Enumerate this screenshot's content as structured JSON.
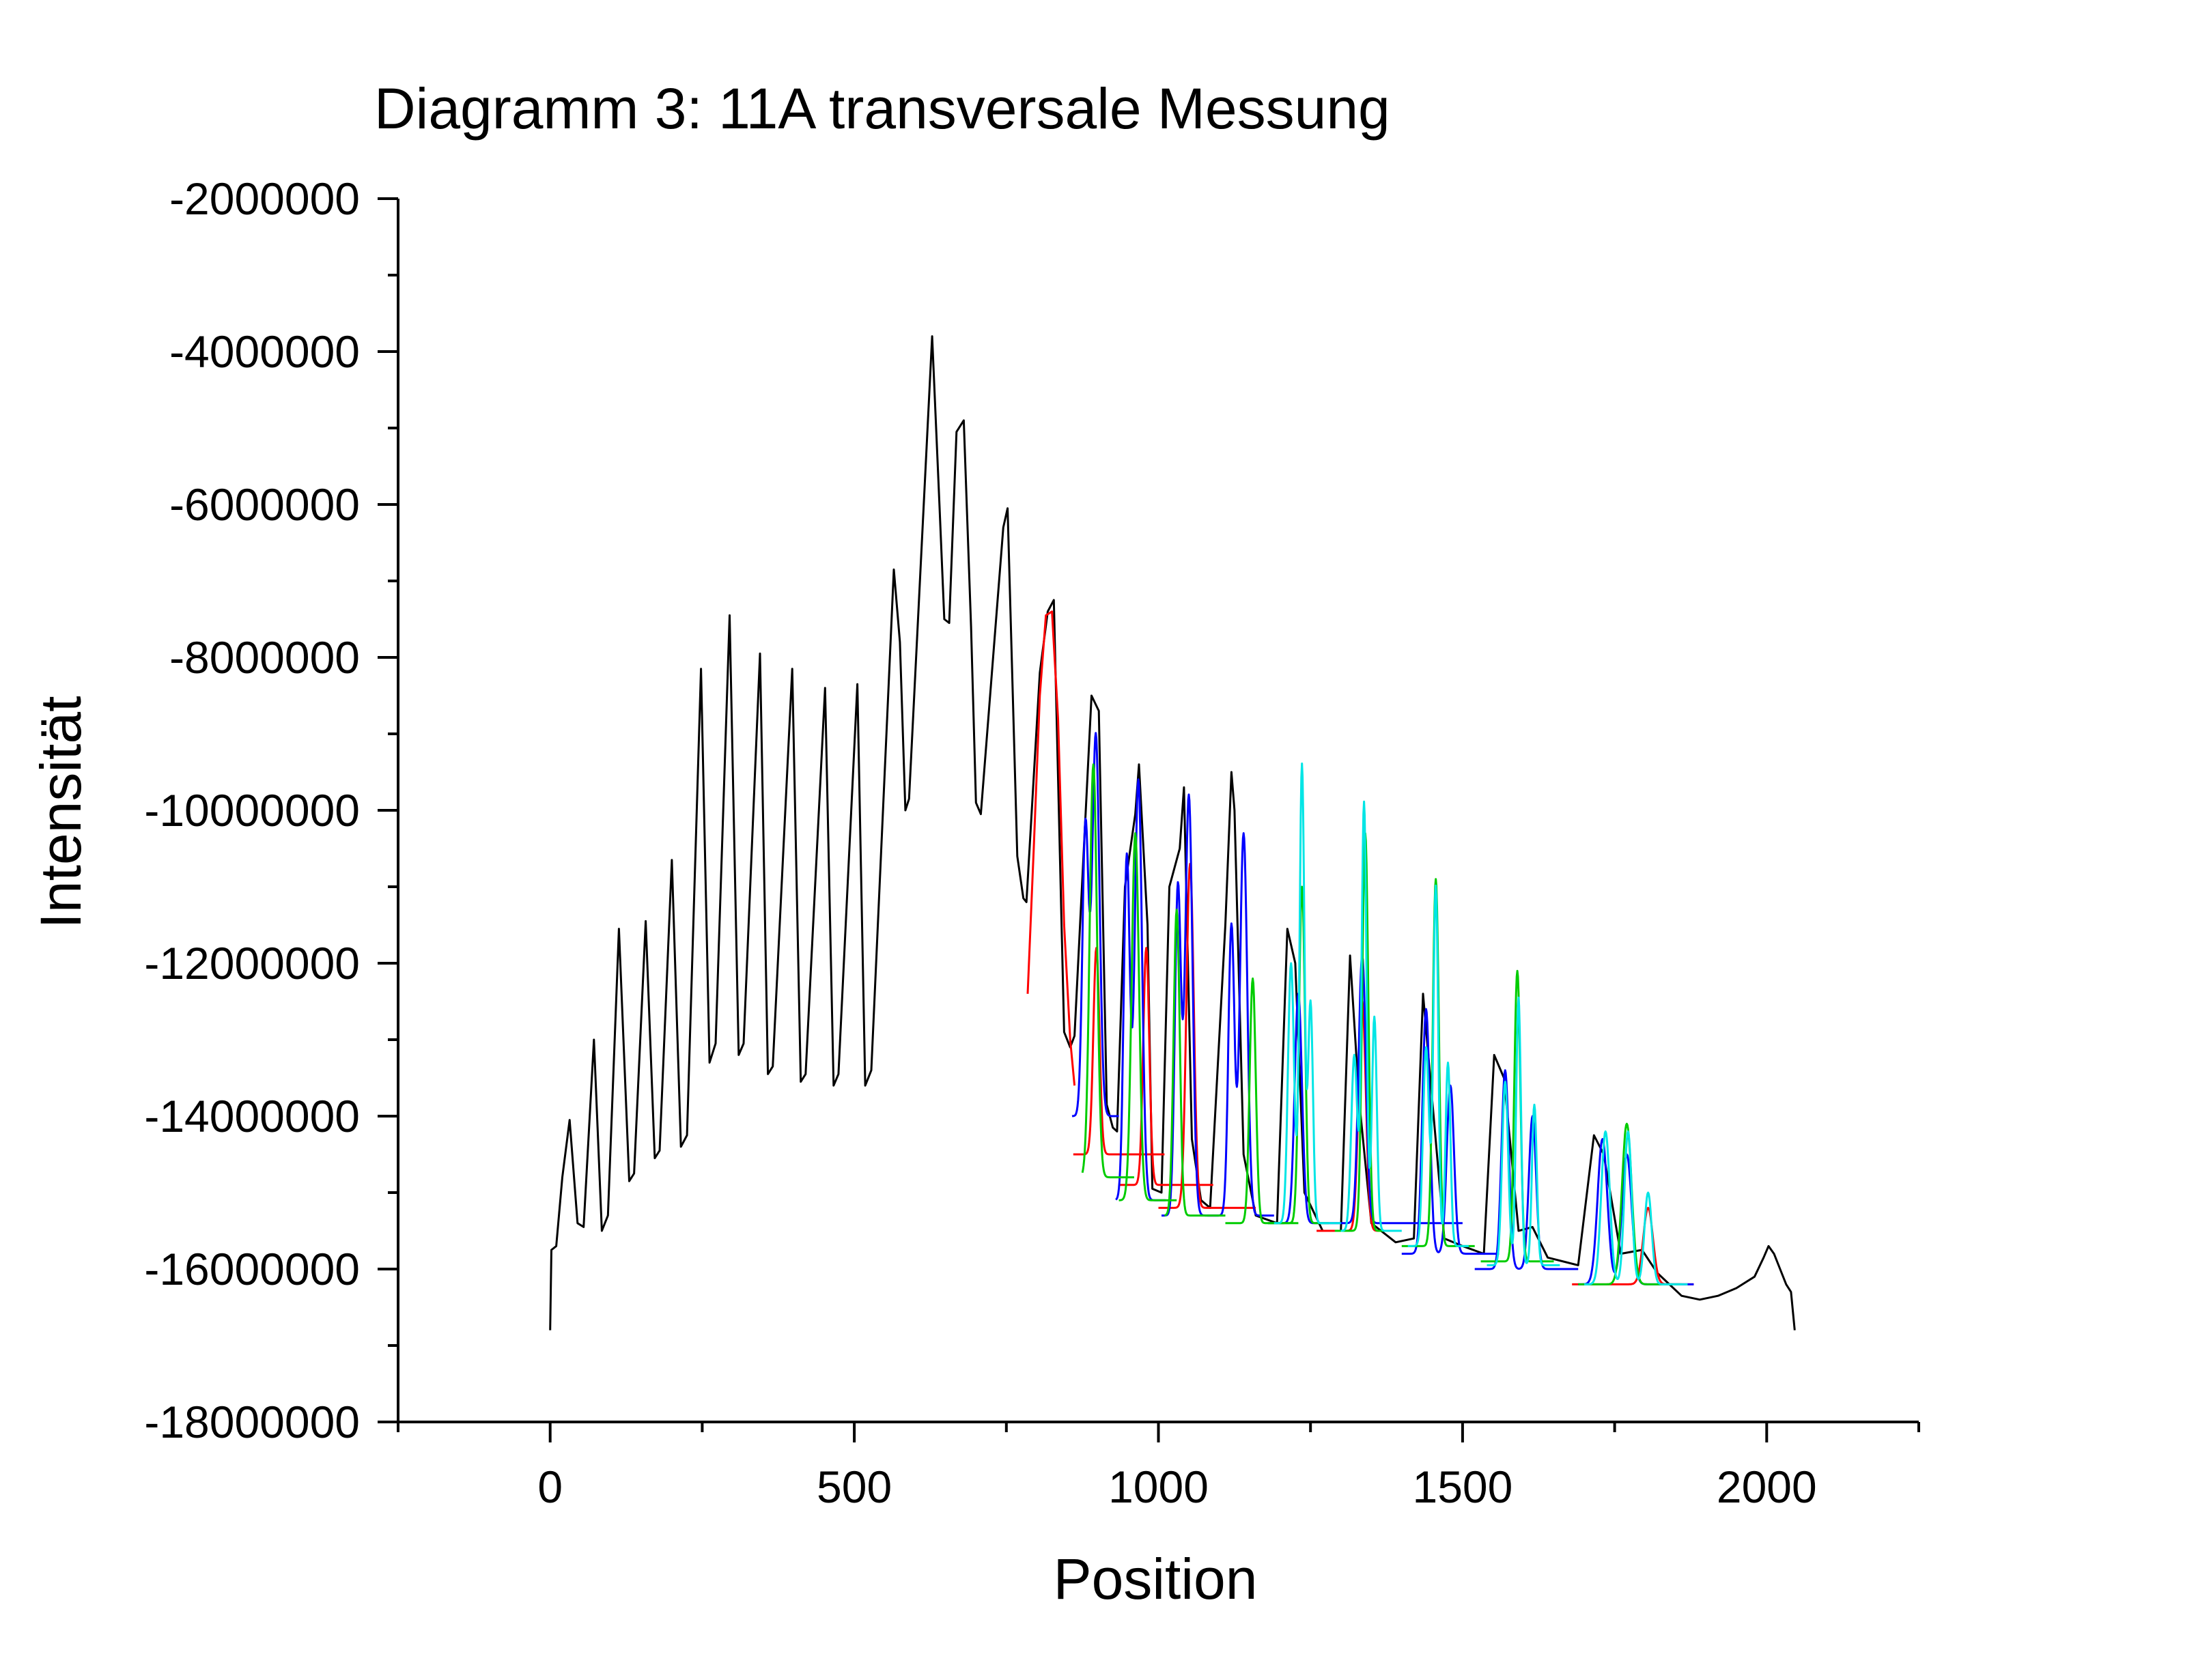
{
  "chart_data": {
    "type": "line",
    "title": "Diagramm 3: 11A transversale Messung",
    "xlabel": "Position",
    "ylabel": "Intensität",
    "xlim": [
      -250,
      2250
    ],
    "ylim": [
      -18000000,
      -2000000
    ],
    "x_ticks": [
      0,
      500,
      1000,
      1500,
      2000
    ],
    "x_tick_labels": [
      "0",
      "500",
      "1000",
      "1500",
      "2000"
    ],
    "y_ticks": [
      -2000000,
      -4000000,
      -6000000,
      -8000000,
      -10000000,
      -12000000,
      -14000000,
      -16000000,
      -18000000
    ],
    "y_tick_labels": [
      "-2000000",
      "-4000000",
      "-6000000",
      "-8000000",
      "-10000000",
      "-12000000",
      "-14000000",
      "-16000000",
      "-18000000"
    ],
    "grid": false,
    "legend": "none",
    "series": [
      {
        "role": "measurement",
        "color": "#000000",
        "points": [
          [
            0,
            -16800000
          ],
          [
            2,
            -15750000
          ],
          [
            10,
            -15700000
          ],
          [
            20,
            -14800000
          ],
          [
            32,
            -14050000
          ],
          [
            45,
            -15400000
          ],
          [
            55,
            -15450000
          ],
          [
            72,
            -13000000
          ],
          [
            85,
            -15500000
          ],
          [
            95,
            -15300000
          ],
          [
            113,
            -11550000
          ],
          [
            130,
            -14850000
          ],
          [
            138,
            -14750000
          ],
          [
            157,
            -11450000
          ],
          [
            172,
            -14550000
          ],
          [
            180,
            -14450000
          ],
          [
            200,
            -10650000
          ],
          [
            215,
            -14400000
          ],
          [
            225,
            -14250000
          ],
          [
            248,
            -8150000
          ],
          [
            262,
            -13300000
          ],
          [
            272,
            -13050000
          ],
          [
            295,
            -7450000
          ],
          [
            310,
            -13200000
          ],
          [
            318,
            -13050000
          ],
          [
            345,
            -7950000
          ],
          [
            358,
            -13450000
          ],
          [
            366,
            -13350000
          ],
          [
            398,
            -8150000
          ],
          [
            412,
            -13550000
          ],
          [
            420,
            -13450000
          ],
          [
            452,
            -8400000
          ],
          [
            466,
            -13600000
          ],
          [
            474,
            -13450000
          ],
          [
            505,
            -8350000
          ],
          [
            518,
            -13600000
          ],
          [
            528,
            -13400000
          ],
          [
            565,
            -6850000
          ],
          [
            575,
            -7800000
          ],
          [
            584,
            -10000000
          ],
          [
            590,
            -9850000
          ],
          [
            628,
            -3800000
          ],
          [
            640,
            -6000000
          ],
          [
            648,
            -7500000
          ],
          [
            656,
            -7550000
          ],
          [
            668,
            -5050000
          ],
          [
            680,
            -4900000
          ],
          [
            692,
            -7600000
          ],
          [
            700,
            -9900000
          ],
          [
            708,
            -10050000
          ],
          [
            745,
            -6300000
          ],
          [
            752,
            -6050000
          ],
          [
            768,
            -10600000
          ],
          [
            778,
            -11150000
          ],
          [
            783,
            -11200000
          ],
          [
            805,
            -8200000
          ],
          [
            818,
            -7400000
          ],
          [
            828,
            -7250000
          ],
          [
            845,
            -12900000
          ],
          [
            855,
            -13100000
          ],
          [
            862,
            -12950000
          ],
          [
            890,
            -8500000
          ],
          [
            902,
            -8700000
          ],
          [
            915,
            -13850000
          ],
          [
            925,
            -14150000
          ],
          [
            932,
            -14200000
          ],
          [
            945,
            -11000000
          ],
          [
            962,
            -10050000
          ],
          [
            968,
            -9400000
          ],
          [
            982,
            -11500000
          ],
          [
            990,
            -14950000
          ],
          [
            1005,
            -15000000
          ],
          [
            1018,
            -11000000
          ],
          [
            1035,
            -10500000
          ],
          [
            1042,
            -9700000
          ],
          [
            1055,
            -14300000
          ],
          [
            1070,
            -15100000
          ],
          [
            1085,
            -15200000
          ],
          [
            1110,
            -11500000
          ],
          [
            1120,
            -9500000
          ],
          [
            1125,
            -10000000
          ],
          [
            1140,
            -14500000
          ],
          [
            1160,
            -15300000
          ],
          [
            1195,
            -15400000
          ],
          [
            1212,
            -11550000
          ],
          [
            1225,
            -12000000
          ],
          [
            1240,
            -15000000
          ],
          [
            1270,
            -15500000
          ],
          [
            1300,
            -15500000
          ],
          [
            1315,
            -11900000
          ],
          [
            1330,
            -13800000
          ],
          [
            1350,
            -15400000
          ],
          [
            1390,
            -15650000
          ],
          [
            1420,
            -15600000
          ],
          [
            1435,
            -12400000
          ],
          [
            1448,
            -13600000
          ],
          [
            1470,
            -15600000
          ],
          [
            1500,
            -15700000
          ],
          [
            1535,
            -15800000
          ],
          [
            1552,
            -13200000
          ],
          [
            1568,
            -13500000
          ],
          [
            1592,
            -15500000
          ],
          [
            1615,
            -15450000
          ],
          [
            1640,
            -15850000
          ],
          [
            1690,
            -15950000
          ],
          [
            1716,
            -14250000
          ],
          [
            1732,
            -14500000
          ],
          [
            1760,
            -15800000
          ],
          [
            1795,
            -15750000
          ],
          [
            1820,
            -16050000
          ],
          [
            1860,
            -16350000
          ],
          [
            1890,
            -16400000
          ],
          [
            1920,
            -16350000
          ],
          [
            1950,
            -16250000
          ],
          [
            1980,
            -16100000
          ],
          [
            1995,
            -15850000
          ],
          [
            2003,
            -15700000
          ],
          [
            2012,
            -15800000
          ],
          [
            2022,
            -16000000
          ],
          [
            2032,
            -16200000
          ],
          [
            2040,
            -16300000
          ],
          [
            2046,
            -16800000
          ]
        ]
      },
      {
        "role": "fit",
        "color": "#ff0000",
        "peaks": [
          {
            "base": -14500000,
            "x_start": 860,
            "x_end": 1010,
            "centers": [
              898
            ],
            "amplitudes": [
              2700000
            ],
            "widths": [
              5
            ]
          },
          {
            "base": -14900000,
            "x_start": 935,
            "x_end": 1090,
            "centers": [
              980
            ],
            "amplitudes": [
              3100000
            ],
            "widths": [
              5
            ]
          },
          {
            "base": -15200000,
            "x_start": 1000,
            "x_end": 1160,
            "centers": [
              1052
            ],
            "amplitudes": [
              4500000
            ],
            "widths": [
              6
            ]
          },
          {
            "base": -15500000,
            "x_start": 1260,
            "x_end": 1380,
            "centers": [
              1335
            ],
            "amplitudes": [
              3000000
            ],
            "widths": [
              6
            ]
          },
          {
            "base": -16200000,
            "x_start": 1680,
            "x_end": 1880,
            "centers": [
              1805
            ],
            "amplitudes": [
              1000000
            ],
            "widths": [
              8
            ]
          }
        ],
        "segments": [
          [
            [
              785,
              -12400000
            ],
            [
              795,
              -10500000
            ],
            [
              805,
              -8500000
            ],
            [
              815,
              -7450000
            ],
            [
              825,
              -7400000
            ],
            [
              835,
              -8800000
            ],
            [
              845,
              -11500000
            ],
            [
              855,
              -13000000
            ],
            [
              862,
              -13600000
            ]
          ]
        ]
      },
      {
        "role": "fit",
        "color": "#0000ff",
        "peaks": [
          {
            "base": -14000000,
            "x_start": 858,
            "x_end": 935,
            "centers": [
              880,
              897
            ],
            "amplitudes": [
              3800000,
              5000000
            ],
            "widths": [
              5,
              6
            ]
          },
          {
            "base": -15100000,
            "x_start": 930,
            "x_end": 1012,
            "centers": [
              948,
              967
            ],
            "amplitudes": [
              4500000,
              5500000
            ],
            "widths": [
              5,
              6
            ]
          },
          {
            "base": -15300000,
            "x_start": 1005,
            "x_end": 1100,
            "centers": [
              1032,
              1050
            ],
            "amplitudes": [
              4300000,
              5500000
            ],
            "widths": [
              5,
              6
            ]
          },
          {
            "base": -15300000,
            "x_start": 1080,
            "x_end": 1190,
            "centers": [
              1120,
              1140
            ],
            "amplitudes": [
              3800000,
              5000000
            ],
            "widths": [
              5,
              6
            ]
          },
          {
            "base": -15400000,
            "x_start": 1180,
            "x_end": 1500,
            "centers": [
              1230,
              1335
            ],
            "amplitudes": [
              3000000,
              3500000
            ],
            "widths": [
              6,
              6
            ]
          },
          {
            "base": -15800000,
            "x_start": 1400,
            "x_end": 1560,
            "centers": [
              1440,
              1480
            ],
            "amplitudes": [
              3200000,
              2200000
            ],
            "widths": [
              6,
              6
            ]
          },
          {
            "base": -16000000,
            "x_start": 1520,
            "x_end": 1690,
            "centers": [
              1570,
              1615
            ],
            "amplitudes": [
              2600000,
              2000000
            ],
            "widths": [
              6,
              6
            ]
          },
          {
            "base": -16200000,
            "x_start": 1690,
            "x_end": 1880,
            "centers": [
              1730,
              1770
            ],
            "amplitudes": [
              1900000,
              1700000
            ],
            "widths": [
              8,
              8
            ]
          }
        ]
      },
      {
        "role": "fit",
        "color": "#00cc00",
        "peaks": [
          {
            "base": -14800000,
            "x_start": 875,
            "x_end": 960,
            "centers": [
              893
            ],
            "amplitudes": [
              5400000
            ],
            "widths": [
              6
            ]
          },
          {
            "base": -15100000,
            "x_start": 935,
            "x_end": 1030,
            "centers": [
              962
            ],
            "amplitudes": [
              4800000
            ],
            "widths": [
              6
            ]
          },
          {
            "base": -15300000,
            "x_start": 1010,
            "x_end": 1110,
            "centers": [
              1030
            ],
            "amplitudes": [
              4000000
            ],
            "widths": [
              5
            ]
          },
          {
            "base": -15400000,
            "x_start": 1110,
            "x_end": 1230,
            "centers": [
              1155
            ],
            "amplitudes": [
              3200000
            ],
            "widths": [
              5
            ]
          },
          {
            "base": -15400000,
            "x_start": 1180,
            "x_end": 1280,
            "centers": [
              1236
            ],
            "amplitudes": [
              4400000
            ],
            "widths": [
              5
            ]
          },
          {
            "base": -15500000,
            "x_start": 1290,
            "x_end": 1390,
            "centers": [
              1340
            ],
            "amplitudes": [
              5200000
            ],
            "widths": [
              5
            ]
          },
          {
            "base": -15700000,
            "x_start": 1400,
            "x_end": 1520,
            "centers": [
              1456
            ],
            "amplitudes": [
              4800000
            ],
            "widths": [
              5
            ]
          },
          {
            "base": -15900000,
            "x_start": 1530,
            "x_end": 1650,
            "centers": [
              1590
            ],
            "amplitudes": [
              3800000
            ],
            "widths": [
              5
            ]
          },
          {
            "base": -16200000,
            "x_start": 1690,
            "x_end": 1860,
            "centers": [
              1770
            ],
            "amplitudes": [
              2100000
            ],
            "widths": [
              8
            ]
          }
        ]
      },
      {
        "role": "fit",
        "color": "#00e5e5",
        "peaks": [
          {
            "base": -15400000,
            "x_start": 1190,
            "x_end": 1300,
            "centers": [
              1218,
              1236,
              1250
            ],
            "amplitudes": [
              3400000,
              6000000,
              2900000
            ],
            "widths": [
              5,
              4,
              4
            ]
          },
          {
            "base": -15500000,
            "x_start": 1300,
            "x_end": 1400,
            "centers": [
              1322,
              1338,
              1355
            ],
            "amplitudes": [
              2300000,
              5600000,
              2800000
            ],
            "widths": [
              5,
              4,
              4
            ]
          },
          {
            "base": -15700000,
            "x_start": 1410,
            "x_end": 1510,
            "centers": [
              1440,
              1456,
              1476
            ],
            "amplitudes": [
              2600000,
              4700000,
              2400000
            ],
            "widths": [
              5,
              4,
              4
            ]
          },
          {
            "base": -15950000,
            "x_start": 1540,
            "x_end": 1660,
            "centers": [
              1570,
              1592,
              1618
            ],
            "amplitudes": [
              2400000,
              3500000,
              2100000
            ],
            "widths": [
              5,
              4,
              4
            ]
          },
          {
            "base": -16200000,
            "x_start": 1700,
            "x_end": 1870,
            "centers": [
              1735,
              1772,
              1805
            ],
            "amplitudes": [
              2000000,
              2000000,
              1200000
            ],
            "widths": [
              7,
              6,
              6
            ]
          }
        ]
      }
    ]
  }
}
